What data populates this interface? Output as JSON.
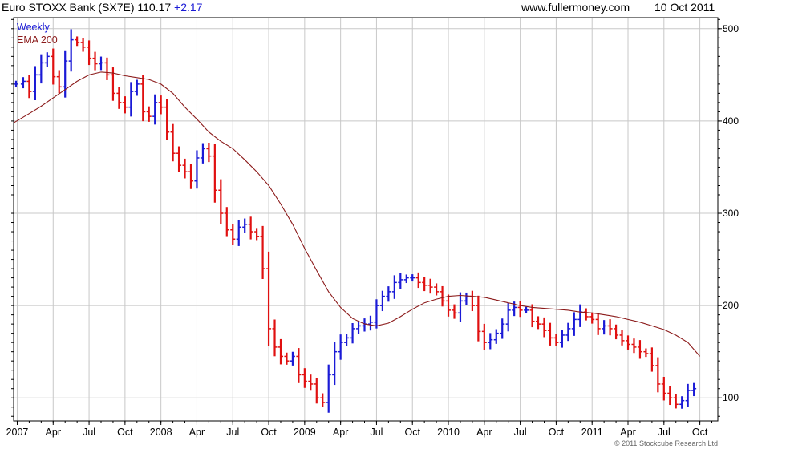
{
  "header": {
    "title": "Euro STOXX Bank (SX7E)",
    "last": "110.17",
    "change": "+2.17",
    "site": "www.fullermoney.com",
    "date": "10 Oct 2011"
  },
  "legend": {
    "timeframe": "Weekly",
    "indicator": "EMA 200"
  },
  "copyright": "© 2011 Stockcube Research Ltd",
  "colors": {
    "up": "#1a1ad6",
    "down": "#e01010",
    "ema": "#8b1a1a",
    "grid": "#c8c8c8"
  },
  "chart_data": {
    "type": "line",
    "title": "Euro STOXX Bank (SX7E)",
    "timeframe": "Weekly",
    "ylim": [
      75,
      512
    ],
    "y_ticks": [
      100,
      200,
      300,
      400,
      500
    ],
    "y_axis_side": "right",
    "grid": true,
    "x_tick_labels": [
      "2007",
      "Apr",
      "Jul",
      "Oct",
      "2008",
      "Apr",
      "Jul",
      "Oct",
      "2009",
      "Apr",
      "Jul",
      "Oct",
      "2010",
      "Apr",
      "Jul",
      "Oct",
      "2011",
      "Apr",
      "Jul",
      "Oct"
    ],
    "x_tick_months": [
      0,
      3,
      6,
      9,
      12,
      15,
      18,
      21,
      24,
      27,
      30,
      33,
      36,
      39,
      42,
      45,
      48,
      51,
      54,
      57
    ],
    "xlim_months": [
      -0.3,
      58.5
    ],
    "series": [
      {
        "name": "",
        "style": "weekly bars (up blue, down red)",
        "month_index": [
          -0.1,
          0.5,
          1.0,
          1.5,
          2.0,
          2.5,
          3.0,
          3.5,
          4.0,
          4.5,
          5.0,
          5.5,
          6.0,
          6.5,
          7.0,
          7.5,
          8.0,
          8.5,
          9.0,
          9.5,
          10.0,
          10.5,
          11.0,
          11.5,
          12.0,
          12.5,
          13.0,
          13.5,
          14.0,
          14.5,
          15.0,
          15.5,
          16.0,
          16.5,
          17.0,
          17.5,
          18.0,
          18.5,
          19.0,
          19.5,
          20.0,
          20.5,
          21.0,
          21.5,
          22.0,
          22.5,
          23.0,
          23.5,
          24.0,
          24.5,
          25.0,
          25.5,
          26.0,
          26.5,
          27.0,
          27.5,
          28.0,
          28.5,
          29.0,
          29.5,
          30.0,
          30.5,
          31.0,
          31.5,
          32.0,
          32.5,
          33.0,
          33.5,
          34.0,
          34.5,
          35.0,
          35.5,
          36.0,
          36.5,
          37.0,
          37.5,
          38.0,
          38.5,
          39.0,
          39.5,
          40.0,
          40.5,
          41.0,
          41.5,
          42.0,
          42.5,
          43.0,
          43.5,
          44.0,
          44.5,
          45.0,
          45.5,
          46.0,
          46.5,
          47.0,
          47.5,
          48.0,
          48.5,
          49.0,
          49.5,
          50.0,
          50.5,
          51.0,
          51.5,
          52.0,
          52.5,
          53.0,
          53.5,
          54.0,
          54.5,
          55.0,
          55.5,
          56.0,
          56.5,
          57.0,
          57.3
        ],
        "close": [
          440,
          443,
          432,
          450,
          463,
          470,
          448,
          437,
          465,
          488,
          485,
          480,
          468,
          462,
          463,
          450,
          430,
          420,
          415,
          432,
          440,
          410,
          405,
          420,
          415,
          388,
          365,
          352,
          345,
          335,
          360,
          370,
          362,
          325,
          300,
          282,
          272,
          285,
          288,
          280,
          275,
          240,
          175,
          155,
          145,
          140,
          145,
          125,
          118,
          115,
          100,
          95,
          125,
          150,
          160,
          165,
          175,
          178,
          180,
          182,
          200,
          210,
          215,
          225,
          228,
          230,
          230,
          225,
          222,
          220,
          215,
          205,
          195,
          192,
          205,
          210,
          200,
          172,
          160,
          163,
          170,
          180,
          195,
          198,
          195,
          195,
          183,
          180,
          173,
          165,
          160,
          168,
          175,
          185,
          193,
          188,
          185,
          175,
          178,
          175,
          168,
          162,
          158,
          155,
          150,
          148,
          135,
          115,
          105,
          100,
          93,
          97,
          108,
          110
        ],
        "last": 110.17
      },
      {
        "name": "EMA 200",
        "month_index": [
          -0.3,
          1.0,
          2.0,
          3.0,
          4.0,
          5.0,
          6.0,
          7.0,
          8.0,
          9.0,
          10.0,
          11.0,
          12.0,
          13.0,
          14.0,
          15.0,
          16.0,
          17.0,
          18.0,
          19.0,
          20.0,
          21.0,
          22.0,
          23.0,
          24.0,
          25.0,
          26.0,
          27.0,
          28.0,
          29.0,
          30.0,
          31.0,
          32.0,
          33.0,
          34.0,
          35.0,
          36.0,
          37.0,
          38.0,
          39.0,
          40.0,
          41.0,
          42.0,
          43.0,
          44.0,
          45.0,
          46.0,
          47.0,
          48.0,
          49.0,
          50.0,
          51.0,
          52.0,
          53.0,
          54.0,
          55.0,
          56.0,
          57.0
        ],
        "values": [
          398,
          408,
          416,
          425,
          434,
          443,
          450,
          453,
          452,
          449,
          447,
          445,
          440,
          430,
          415,
          402,
          388,
          378,
          370,
          358,
          345,
          330,
          310,
          288,
          262,
          238,
          215,
          198,
          186,
          180,
          178,
          181,
          188,
          196,
          203,
          207,
          210,
          211,
          210,
          209,
          206,
          203,
          200,
          198,
          197,
          196,
          195,
          193,
          192,
          190,
          188,
          185,
          182,
          178,
          174,
          168,
          160,
          145
        ]
      }
    ]
  }
}
